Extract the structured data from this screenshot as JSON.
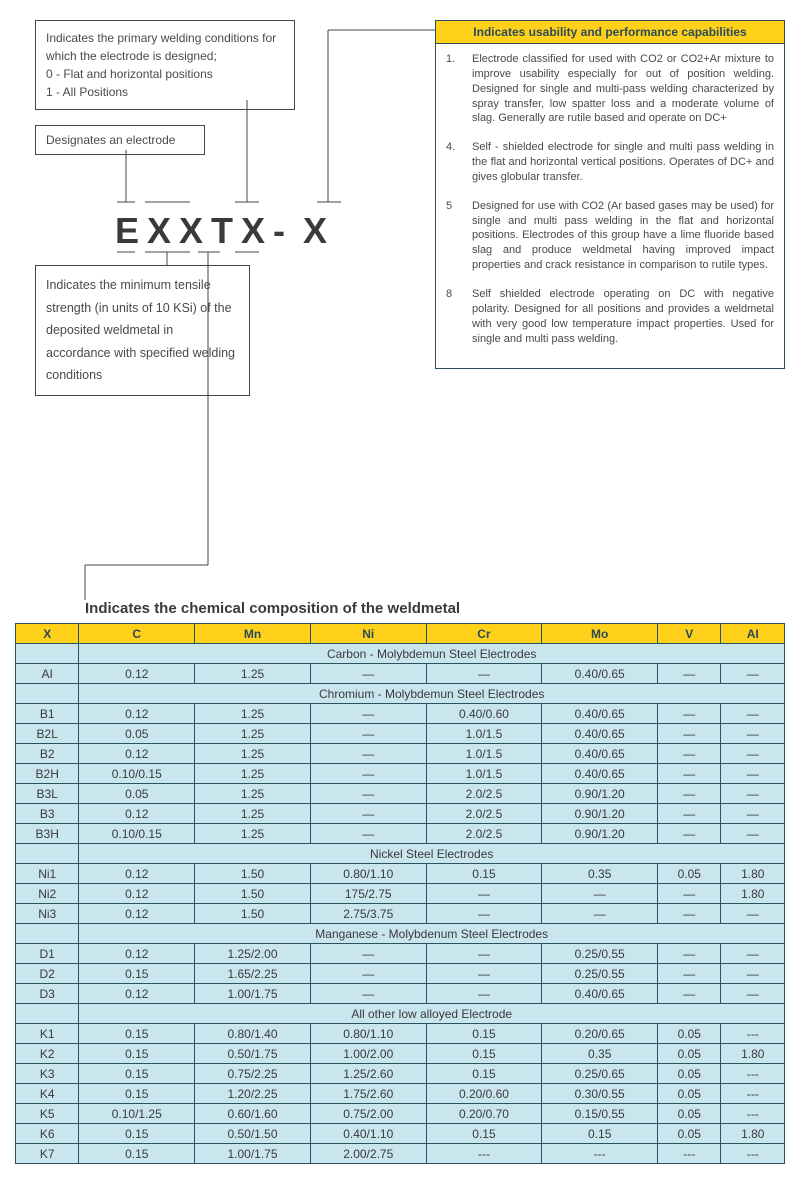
{
  "boxes": {
    "primary": "Indicates the primary welding conditions for which the electrode is designed;\n0 - Flat and horizontal positions\n1 - All Positions",
    "electrode": "Designates an electrode",
    "tensile": "Indicates the minimum tensile strength (in units of 10 KSi) of the deposited weldmetal in accordance with specified welding conditions"
  },
  "formula": {
    "part1": "EXXTX",
    "part2": "- X"
  },
  "usability": {
    "header": "Indicates usability and performance capabilities",
    "items": [
      {
        "num": "1.",
        "txt": "Electrode classified for used with CO2 or CO2+Ar mixture to improve usability especially for out of position welding. Designed for single and multi-pass welding characterized by spray transfer, low spatter loss and a moderate volume of slag. Generally are rutile based and operate on DC+"
      },
      {
        "num": "4.",
        "txt": "Self - shielded electrode for single and multi pass welding in the flat and horizontal vertical positions. Operates of DC+ and gives globular transfer."
      },
      {
        "num": "5",
        "txt": "Designed for use with CO2 (Ar based gases may be used) for single and multi pass welding in the flat and horizontal positions. Electrodes of this group have a lime fluoride based slag and produce weldmetal having improved impact properties and crack resistance in comparison to rutile types."
      },
      {
        "num": "8",
        "txt": "Self shielded electrode operating on DC with negative polarity. Designed for all positions and provides a weldmetal with very good low temperature impact properties. Used for single and multi pass welding."
      }
    ]
  },
  "table": {
    "title": "Indicates the chemical composition of the weldmetal",
    "headers": [
      "X",
      "C",
      "Mn",
      "Ni",
      "Cr",
      "Mo",
      "V",
      "AI"
    ],
    "groups": [
      {
        "label": "Carbon - Molybdemun Steel Electrodes",
        "rows": [
          [
            "AI",
            "0.12",
            "1.25",
            "—",
            "—",
            "0.40/0.65",
            "—",
            "—"
          ]
        ]
      },
      {
        "label": "Chromium - Molybdemun Steel Electrodes",
        "rows": [
          [
            "B1",
            "0.12",
            "1.25",
            "—",
            "0.40/0.60",
            "0.40/0.65",
            "—",
            "—"
          ],
          [
            "B2L",
            "0.05",
            "1.25",
            "—",
            "1.0/1.5",
            "0.40/0.65",
            "—",
            "—"
          ],
          [
            "B2",
            "0.12",
            "1.25",
            "—",
            "1.0/1.5",
            "0.40/0.65",
            "—",
            "—"
          ],
          [
            "B2H",
            "0.10/0.15",
            "1.25",
            "—",
            "1.0/1.5",
            "0.40/0.65",
            "—",
            "—"
          ],
          [
            "B3L",
            "0.05",
            "1.25",
            "—",
            "2.0/2.5",
            "0.90/1.20",
            "—",
            "—"
          ],
          [
            "B3",
            "0.12",
            "1.25",
            "—",
            "2.0/2.5",
            "0.90/1.20",
            "—",
            "—"
          ],
          [
            "B3H",
            "0.10/0.15",
            "1.25",
            "—",
            "2.0/2.5",
            "0.90/1.20",
            "—",
            "—"
          ]
        ]
      },
      {
        "label": "Nickel Steel Electrodes",
        "rows": [
          [
            "Ni1",
            "0.12",
            "1.50",
            "0.80/1.10",
            "0.15",
            "0.35",
            "0.05",
            "1.80"
          ],
          [
            "Ni2",
            "0.12",
            "1.50",
            "175/2.75",
            "—",
            "—",
            "—",
            "1.80"
          ],
          [
            "Ni3",
            "0.12",
            "1.50",
            "2.75/3.75",
            "—",
            "—",
            "—",
            "—"
          ]
        ]
      },
      {
        "label": "Manganese - Molybdenum Steel Electrodes",
        "rows": [
          [
            "D1",
            "0.12",
            "1.25/2.00",
            "—",
            "—",
            "0.25/0.55",
            "—",
            "—"
          ],
          [
            "D2",
            "0.15",
            "1.65/2.25",
            "—",
            "—",
            "0.25/0.55",
            "—",
            "—"
          ],
          [
            "D3",
            "0.12",
            "1.00/1.75",
            "—",
            "—",
            "0.40/0.65",
            "—",
            "—"
          ]
        ]
      },
      {
        "label": "All other low alloyed Electrode",
        "rows": [
          [
            "K1",
            "0.15",
            "0.80/1.40",
            "0.80/1.10",
            "0.15",
            "0.20/0.65",
            "0.05",
            "---"
          ],
          [
            "K2",
            "0.15",
            "0.50/1.75",
            "1.00/2.00",
            "0.15",
            "0.35",
            "0.05",
            "1.80"
          ],
          [
            "K3",
            "0.15",
            "0.75/2.25",
            "1.25/2.60",
            "0.15",
            "0.25/0.65",
            "0.05",
            "---"
          ],
          [
            "K4",
            "0.15",
            "1.20/2.25",
            "1.75/2.60",
            "0.20/0.60",
            "0.30/0.55",
            "0.05",
            "---"
          ],
          [
            "K5",
            "0.10/1.25",
            "0.60/1.60",
            "0.75/2.00",
            "0.20/0.70",
            "0.15/0.55",
            "0.05",
            "---"
          ],
          [
            "K6",
            "0.15",
            "0.50/1.50",
            "0.40/1.10",
            "0.15",
            "0.15",
            "0.05",
            "1.80"
          ],
          [
            "K7",
            "0.15",
            "1.00/1.75",
            "2.00/2.75",
            "---",
            "---",
            "---",
            "---"
          ]
        ]
      }
    ]
  },
  "style": {
    "accent_yellow": "#ffd11a",
    "cell_blue": "#c9e5ee",
    "border_teal": "#28535e"
  }
}
